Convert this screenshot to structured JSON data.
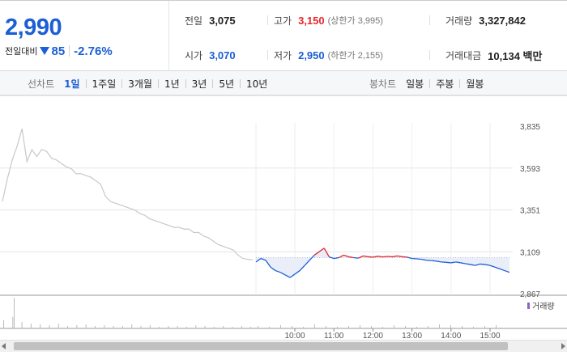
{
  "quote": {
    "price": "2,990",
    "change_label": "전일대비",
    "change_icon": "down-triangle",
    "change_amount": "85",
    "change_rate": "-2.76%",
    "stats": {
      "prev_close": {
        "label": "전일",
        "value": "3,075"
      },
      "open": {
        "label": "시가",
        "value": "3,070"
      },
      "high": {
        "label": "고가",
        "value": "3,150",
        "note": "(상한가 3,995)"
      },
      "low": {
        "label": "저가",
        "value": "2,950",
        "note": "(하한가 2,155)"
      },
      "volume": {
        "label": "거래량",
        "value": "3,327,842"
      },
      "amount": {
        "label": "거래대금",
        "value": "10,134 백만"
      }
    },
    "colors": {
      "down": "#1c5ed6",
      "up": "#e8262a"
    }
  },
  "period_bar": {
    "line_title": "선차트",
    "line_tabs": [
      "1일",
      "1주일",
      "3개월",
      "1년",
      "3년",
      "5년",
      "10년"
    ],
    "active_line_tab": "1일",
    "candle_title": "봉차트",
    "candle_tabs": [
      "일봉",
      "주봉",
      "월봉"
    ]
  },
  "chart_data": {
    "type": "line",
    "ylim": [
      2867,
      3835
    ],
    "y_ticks": [
      "3,835",
      "3,593",
      "3,351",
      "3,109",
      "2,867"
    ],
    "x_ticks": [
      "10:00",
      "11:00",
      "12:00",
      "13:00",
      "14:00",
      "15:00"
    ],
    "baseline": 3075,
    "volume_label": "거래량",
    "series": [
      {
        "role": "previous-session",
        "color": "#c8c8c8",
        "values": [
          3400,
          3530,
          3640,
          3720,
          3820,
          3630,
          3700,
          3660,
          3700,
          3690,
          3650,
          3640,
          3620,
          3600,
          3590,
          3560,
          3560,
          3550,
          3540,
          3520,
          3500,
          3430,
          3400,
          3390,
          3380,
          3370,
          3360,
          3350,
          3330,
          3320,
          3300,
          3290,
          3280,
          3270,
          3260,
          3250,
          3250,
          3240,
          3240,
          3220,
          3220,
          3200,
          3190,
          3170,
          3150,
          3140,
          3130,
          3120,
          3090,
          3070,
          3065,
          3062
        ]
      },
      {
        "role": "today",
        "colors_relative_to_baseline": {
          "below": "#1c5ed6",
          "above": "#e8262a"
        },
        "values": [
          3050,
          3070,
          3060,
          3020,
          3000,
          2990,
          2975,
          2960,
          2980,
          3000,
          3030,
          3060,
          3090,
          3110,
          3130,
          3080,
          3070,
          3075,
          3090,
          3080,
          3075,
          3072,
          3085,
          3080,
          3078,
          3083,
          3079,
          3082,
          3080,
          3085,
          3080,
          3078,
          3070,
          3068,
          3065,
          3060,
          3058,
          3055,
          3050,
          3048,
          3045,
          3050,
          3045,
          3040,
          3035,
          3030,
          3038,
          3035,
          3030,
          3020,
          3010,
          3000,
          2990
        ]
      }
    ]
  }
}
